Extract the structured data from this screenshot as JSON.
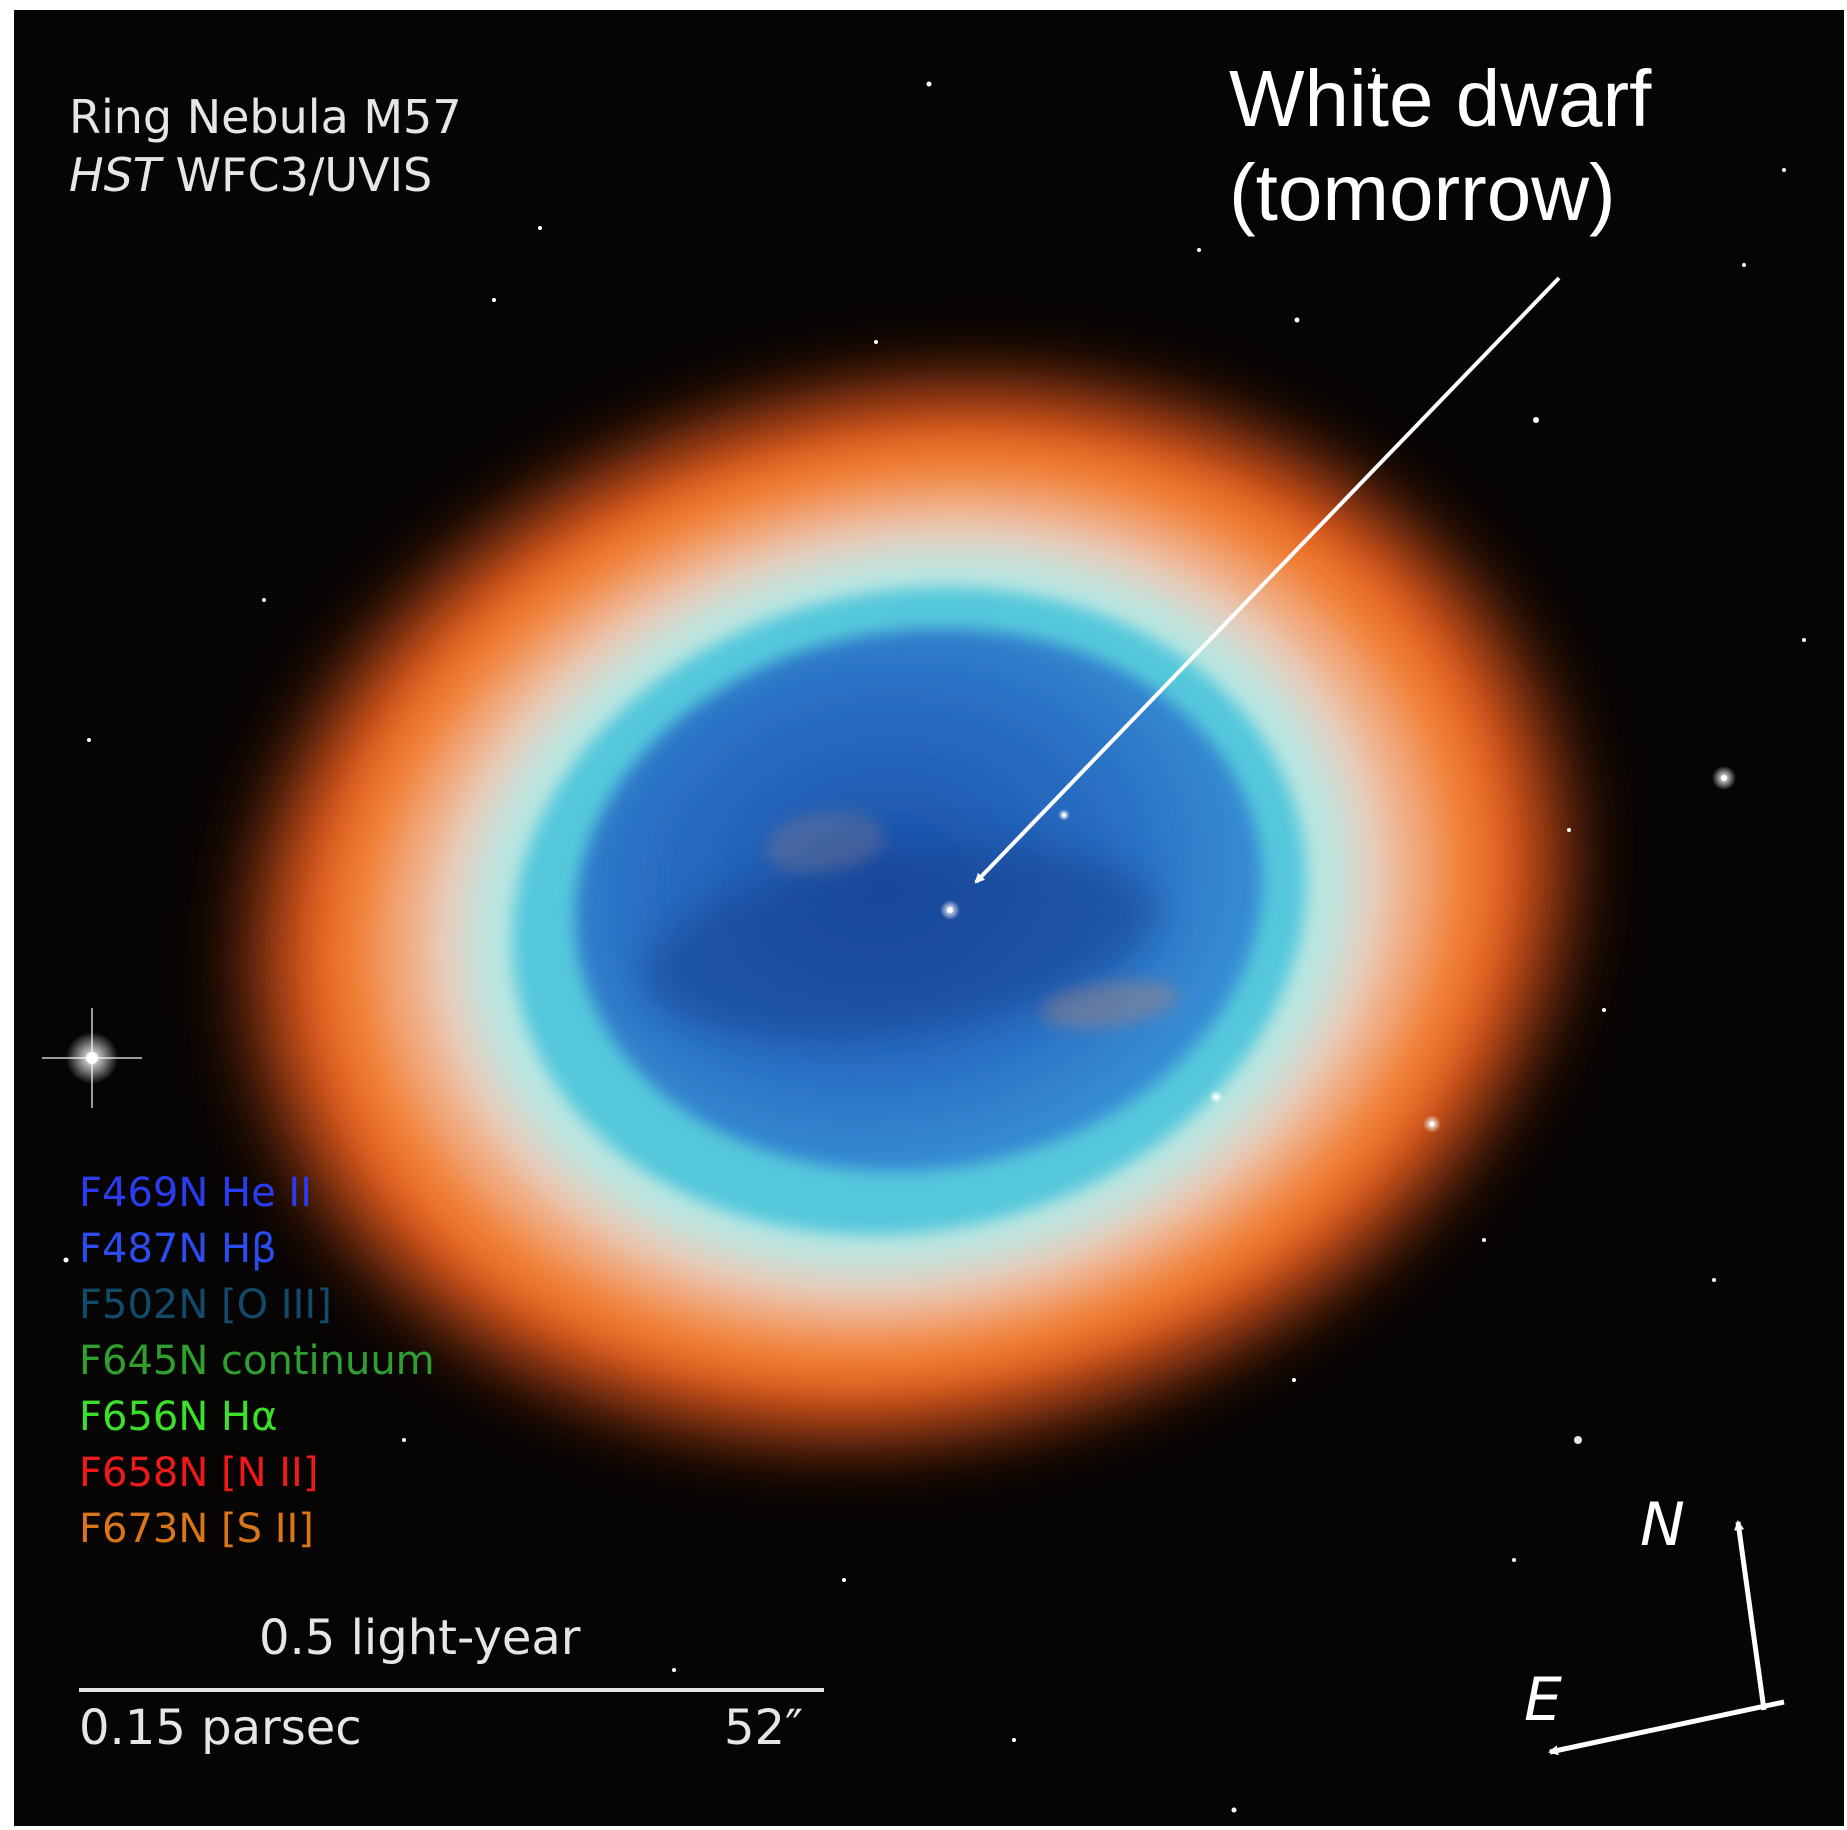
{
  "title": {
    "line1": "Ring Nebula M57",
    "line2_italic": "HST",
    "line2_rest": " WFC3/UVIS"
  },
  "annotation": {
    "line1": "White dwarf",
    "line2": "(tomorrow)"
  },
  "filters": [
    {
      "name": "F469N",
      "label": "He II",
      "color": "#2a3cf0"
    },
    {
      "name": "F487N",
      "label": "Hβ",
      "color": "#2a4cf0"
    },
    {
      "name": "F502N",
      "label": "[O III]",
      "color": "#124a6a"
    },
    {
      "name": "F645N",
      "label": "continuum",
      "color": "#2fa02f"
    },
    {
      "name": "F656N",
      "label": "Hα",
      "color": "#3be02a"
    },
    {
      "name": "F658N",
      "label": "[N II]",
      "color": "#ee1a1a"
    },
    {
      "name": "F673N",
      "label": "[S II]",
      "color": "#d9761a"
    }
  ],
  "scale_bar": {
    "top_label": "0.5 light-year",
    "bottom_left": "0.15 parsec",
    "bottom_right": "52″"
  },
  "compass": {
    "north": "N",
    "east": "E"
  }
}
